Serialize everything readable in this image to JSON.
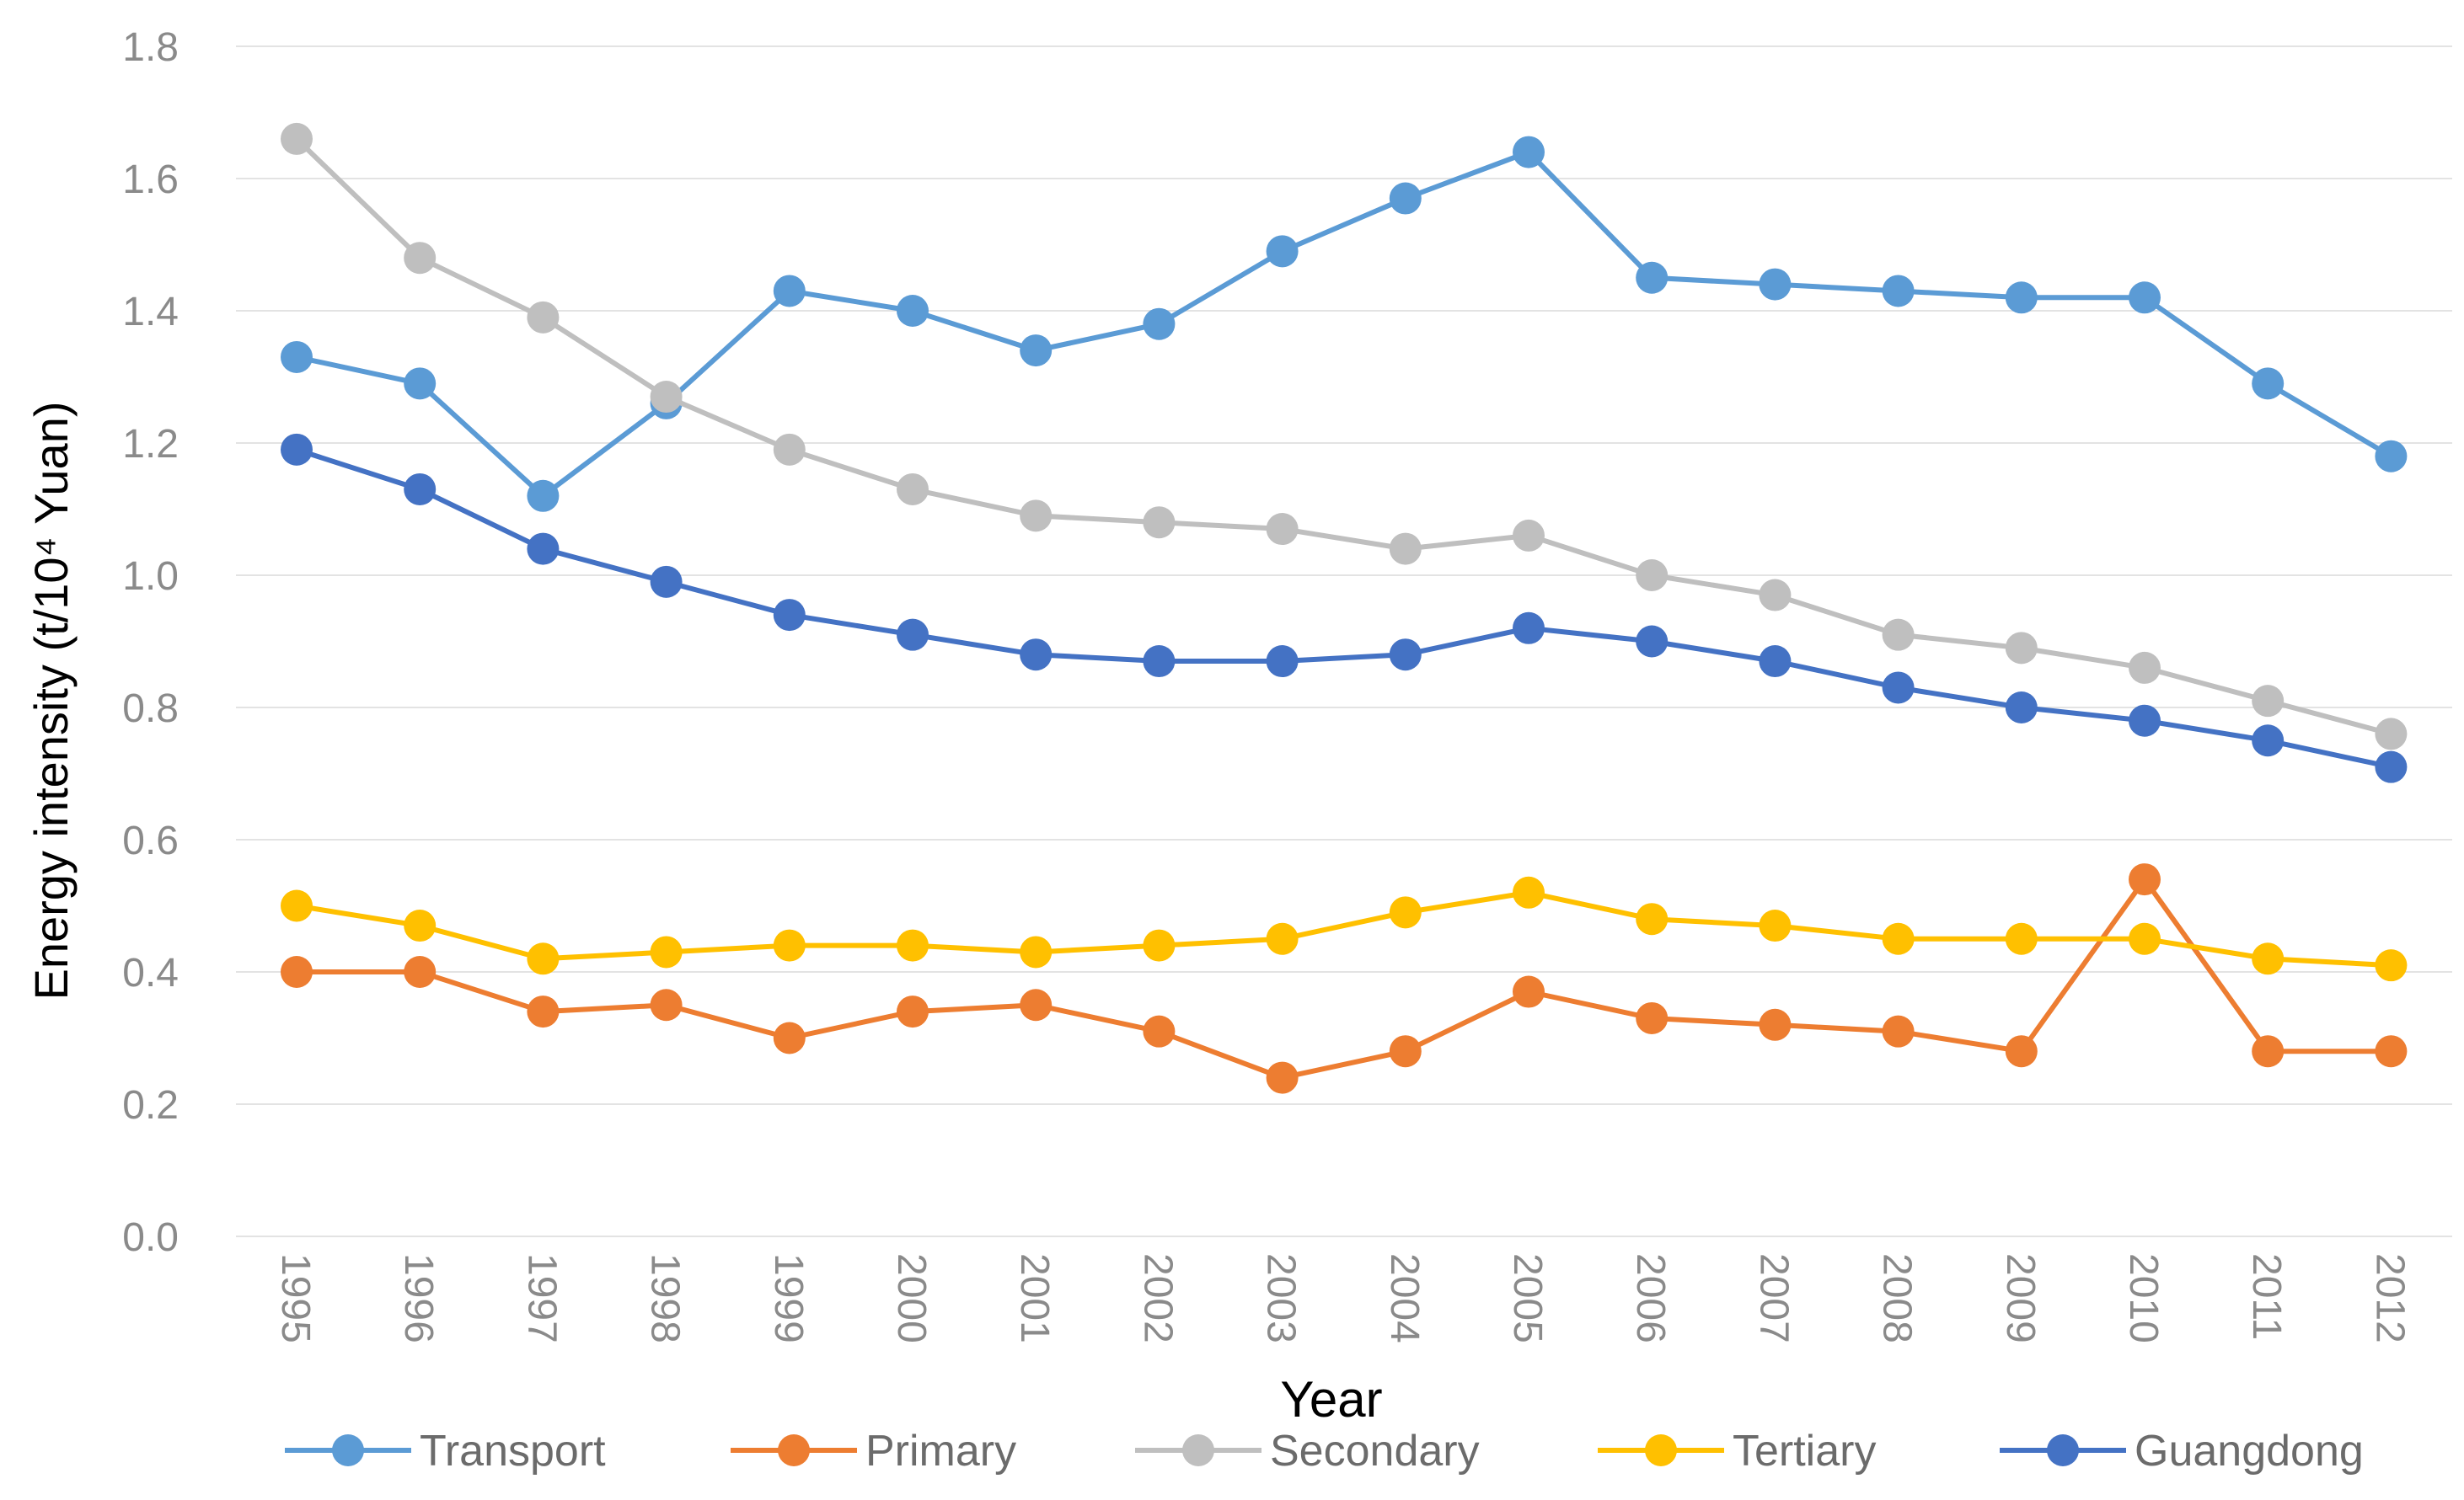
{
  "chart_data": {
    "type": "line",
    "title": "",
    "xlabel": "Year",
    "ylabel": "Energy intensity (t/10⁴ Yuan)",
    "ylim": [
      0,
      1.8
    ],
    "yticks": [
      "0.0",
      "0.2",
      "0.4",
      "0.6",
      "0.8",
      "1.0",
      "1.2",
      "1.4",
      "1.6",
      "1.8"
    ],
    "categories": [
      "1995",
      "1996",
      "1997",
      "1998",
      "1999",
      "2000",
      "2001",
      "2002",
      "2003",
      "2004",
      "2005",
      "2006",
      "2007",
      "2008",
      "2009",
      "2010",
      "2011",
      "2012"
    ],
    "grid": true,
    "legend_position": "bottom",
    "series": [
      {
        "name": "Transport",
        "color": "#5B9BD5",
        "values": [
          1.33,
          1.29,
          1.12,
          1.26,
          1.43,
          1.4,
          1.34,
          1.38,
          1.49,
          1.57,
          1.64,
          1.45,
          1.44,
          1.43,
          1.42,
          1.42,
          1.29,
          1.18
        ]
      },
      {
        "name": "Primary",
        "color": "#ED7D31",
        "values": [
          0.4,
          0.4,
          0.34,
          0.35,
          0.3,
          0.34,
          0.35,
          0.31,
          0.24,
          0.28,
          0.37,
          0.33,
          0.32,
          0.31,
          0.28,
          0.54,
          0.28,
          0.28
        ]
      },
      {
        "name": "Secondary",
        "color": "#BFBFBF",
        "values": [
          1.66,
          1.48,
          1.39,
          1.27,
          1.19,
          1.13,
          1.09,
          1.08,
          1.07,
          1.04,
          1.06,
          1.0,
          0.97,
          0.91,
          0.89,
          0.86,
          0.81,
          0.76
        ]
      },
      {
        "name": "Tertiary",
        "color": "#FFC000",
        "values": [
          0.5,
          0.47,
          0.42,
          0.43,
          0.44,
          0.44,
          0.43,
          0.44,
          0.45,
          0.49,
          0.52,
          0.48,
          0.47,
          0.45,
          0.45,
          0.45,
          0.42,
          0.41
        ]
      },
      {
        "name": "Guangdong",
        "color": "#4472C4",
        "values": [
          1.19,
          1.13,
          1.04,
          0.99,
          0.94,
          0.91,
          0.88,
          0.87,
          0.87,
          0.88,
          0.92,
          0.9,
          0.87,
          0.83,
          0.8,
          0.78,
          0.75,
          0.71
        ]
      }
    ]
  }
}
